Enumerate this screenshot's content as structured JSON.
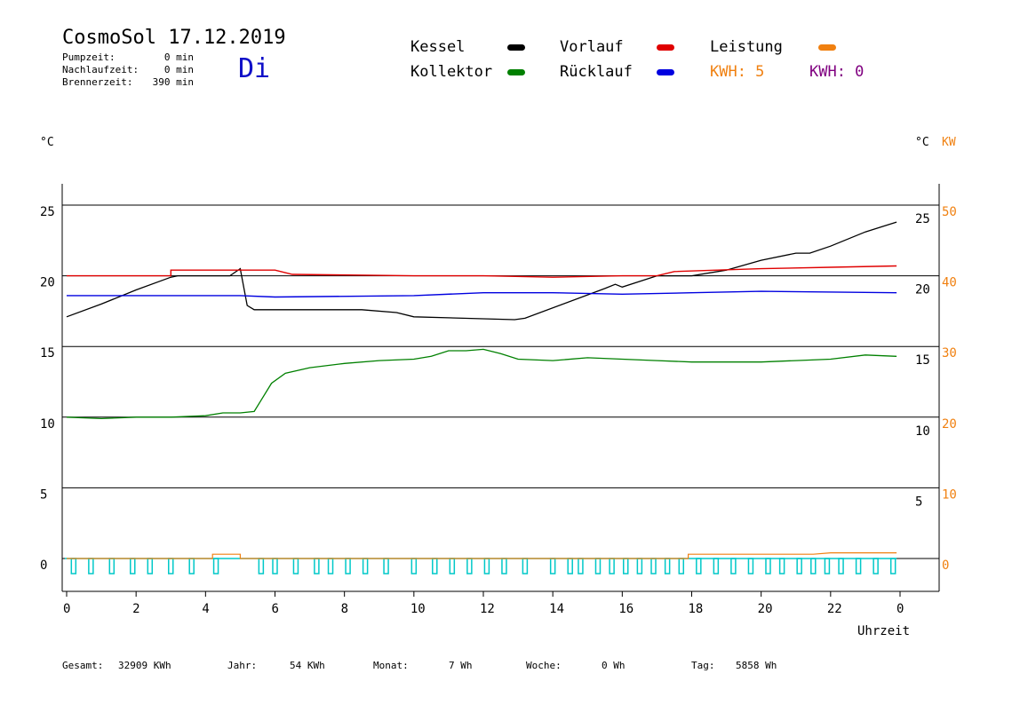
{
  "header": {
    "title": "CosmoSol 17.12.2019",
    "weekday": "Di",
    "stats": [
      {
        "label": "Pumpzeit:",
        "value": "0 min"
      },
      {
        "label": "Nachlaufzeit:",
        "value": "0 min"
      },
      {
        "label": "Brennerzeit:",
        "value": "390 min"
      }
    ]
  },
  "legend": {
    "kessel": {
      "label": "Kessel",
      "color": "#000000"
    },
    "vorlauf": {
      "label": "Vorlauf",
      "color": "#e00000"
    },
    "leistung": {
      "label": "Leistung",
      "color": "#f08010"
    },
    "kollektor": {
      "label": "Kollektor",
      "color": "#008000"
    },
    "ruecklauf": {
      "label": "Rücklauf",
      "color": "#0000e0"
    },
    "kwh1": {
      "text": "KWH: 5",
      "color": "#f08010"
    },
    "kwh2": {
      "text": "KWH: 0",
      "color": "#800080"
    }
  },
  "footer": [
    {
      "label": "Gesamt:",
      "value": "32909 KWh"
    },
    {
      "label": "Jahr:",
      "value": "54 KWh"
    },
    {
      "label": "Monat:",
      "value": "7 Wh"
    },
    {
      "label": "Woche:",
      "value": "0 Wh"
    },
    {
      "label": "Tag:",
      "value": "5858 Wh"
    }
  ],
  "chart_data": {
    "type": "line",
    "xlabel": "Uhrzeit",
    "x_ticks": [
      "0",
      "2",
      "4",
      "6",
      "8",
      "10",
      "12",
      "14",
      "16",
      "18",
      "20",
      "22",
      "0"
    ],
    "xlim": [
      0,
      24
    ],
    "left_axis": {
      "unit": "°C",
      "ticks": [
        0,
        5,
        10,
        15,
        20,
        25
      ],
      "ylim": [
        -2,
        27
      ]
    },
    "right_axis_temp": {
      "unit": "°C",
      "ticks": [
        5,
        10,
        15,
        20,
        25
      ]
    },
    "right_axis_kw": {
      "unit": "KW",
      "ticks": [
        0,
        10,
        20,
        30,
        40,
        50
      ],
      "color": "#f08010"
    },
    "gridlines": [
      0,
      5,
      10,
      15,
      20,
      25
    ],
    "series": [
      {
        "name": "Kessel",
        "color": "#000000",
        "points": [
          [
            0,
            17.1
          ],
          [
            1,
            18.0
          ],
          [
            2,
            19.0
          ],
          [
            3,
            19.9
          ],
          [
            3.2,
            20.0
          ],
          [
            4.7,
            20.0
          ],
          [
            5.0,
            20.5
          ],
          [
            5.2,
            17.9
          ],
          [
            5.4,
            17.6
          ],
          [
            8.5,
            17.6
          ],
          [
            9.5,
            17.4
          ],
          [
            10,
            17.1
          ],
          [
            12.9,
            16.9
          ],
          [
            13.2,
            17.0
          ],
          [
            15.5,
            19.1
          ],
          [
            15.8,
            19.4
          ],
          [
            16,
            19.2
          ],
          [
            17,
            20.0
          ],
          [
            18,
            20.0
          ],
          [
            19,
            20.4
          ],
          [
            20,
            21.1
          ],
          [
            21,
            21.6
          ],
          [
            21.4,
            21.6
          ],
          [
            22,
            22.1
          ],
          [
            23,
            23.1
          ],
          [
            23.9,
            23.8
          ]
        ]
      },
      {
        "name": "Vorlauf",
        "color": "#e00000",
        "points": [
          [
            0,
            20.0
          ],
          [
            3,
            20.0
          ],
          [
            3,
            20.4
          ],
          [
            6,
            20.4
          ],
          [
            6.5,
            20.1
          ],
          [
            10,
            20.0
          ],
          [
            12,
            20.0
          ],
          [
            14,
            19.9
          ],
          [
            16,
            20.0
          ],
          [
            17,
            20.0
          ],
          [
            17.5,
            20.3
          ],
          [
            20,
            20.5
          ],
          [
            22,
            20.6
          ],
          [
            23.9,
            20.7
          ]
        ]
      },
      {
        "name": "Rücklauf",
        "color": "#0000e0",
        "points": [
          [
            0,
            18.6
          ],
          [
            5,
            18.6
          ],
          [
            6,
            18.5
          ],
          [
            10,
            18.6
          ],
          [
            12,
            18.8
          ],
          [
            14,
            18.8
          ],
          [
            16,
            18.7
          ],
          [
            18,
            18.8
          ],
          [
            20,
            18.9
          ],
          [
            23.9,
            18.8
          ]
        ]
      },
      {
        "name": "Kollektor",
        "color": "#008000",
        "points": [
          [
            0,
            10.0
          ],
          [
            1,
            9.9
          ],
          [
            2,
            10.0
          ],
          [
            3,
            10.0
          ],
          [
            4,
            10.1
          ],
          [
            4.5,
            10.3
          ],
          [
            5,
            10.3
          ],
          [
            5.4,
            10.4
          ],
          [
            5.6,
            11.2
          ],
          [
            5.9,
            12.4
          ],
          [
            6.3,
            13.1
          ],
          [
            7,
            13.5
          ],
          [
            8,
            13.8
          ],
          [
            9,
            14.0
          ],
          [
            10,
            14.1
          ],
          [
            10.5,
            14.3
          ],
          [
            11,
            14.7
          ],
          [
            11.5,
            14.7
          ],
          [
            12,
            14.8
          ],
          [
            12.5,
            14.5
          ],
          [
            13,
            14.1
          ],
          [
            14,
            14.0
          ],
          [
            15,
            14.2
          ],
          [
            16,
            14.1
          ],
          [
            17,
            14.0
          ],
          [
            18,
            13.9
          ],
          [
            19,
            13.9
          ],
          [
            20,
            13.9
          ],
          [
            21,
            14.0
          ],
          [
            22,
            14.1
          ],
          [
            23,
            14.4
          ],
          [
            23.9,
            14.3
          ]
        ]
      },
      {
        "name": "Leistung",
        "color": "#f08010",
        "points": [
          [
            0,
            0
          ],
          [
            4.2,
            0
          ],
          [
            4.2,
            0.3
          ],
          [
            5,
            0.3
          ],
          [
            5,
            0
          ],
          [
            17.9,
            0
          ],
          [
            17.9,
            0.3
          ],
          [
            21.5,
            0.3
          ],
          [
            22,
            0.4
          ],
          [
            23.9,
            0.4
          ]
        ]
      }
    ],
    "pump_bars": {
      "color": "#00c8c8",
      "hours": [
        0.2,
        0.7,
        1.3,
        1.9,
        2.4,
        3.0,
        3.6,
        4.3,
        5.6,
        6.0,
        6.6,
        7.2,
        7.6,
        8.1,
        8.6,
        9.2,
        10.0,
        10.6,
        11.1,
        11.6,
        12.1,
        12.6,
        13.2,
        14.0,
        14.5,
        14.8,
        15.3,
        15.7,
        16.1,
        16.5,
        16.9,
        17.3,
        17.7,
        18.2,
        18.7,
        19.2,
        19.7,
        20.2,
        20.6,
        21.1,
        21.5,
        21.9,
        22.3,
        22.8,
        23.3,
        23.8
      ]
    }
  }
}
